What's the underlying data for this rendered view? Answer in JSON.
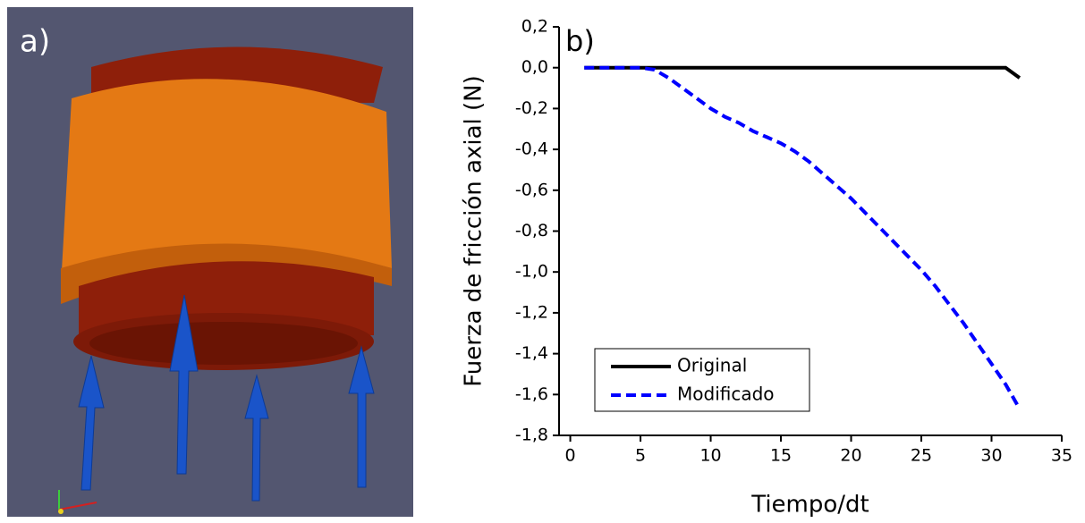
{
  "panel_a": {
    "label": "a)"
  },
  "chart_data": {
    "type": "line",
    "panel_label": "b)",
    "x_label": "Tiempo/dt",
    "y_label": "Fuerza de fricción axial (N)",
    "x": [
      1,
      2,
      3,
      4,
      5,
      6,
      7,
      8,
      9,
      10,
      11,
      12,
      13,
      14,
      15,
      16,
      17,
      18,
      19,
      20,
      21,
      22,
      23,
      24,
      25,
      26,
      27,
      28,
      29,
      30,
      31,
      32
    ],
    "series": [
      {
        "name": "Original",
        "color": "#000000",
        "dash": false,
        "values": [
          0,
          0,
          0,
          0,
          0,
          0,
          0,
          0,
          0,
          0,
          0,
          0,
          0,
          0,
          0,
          0,
          0,
          0,
          0,
          0,
          0,
          0,
          0,
          0,
          0,
          0,
          0,
          0,
          0,
          0,
          0,
          -0.05
        ]
      },
      {
        "name": "Modificado",
        "color": "#0000ff",
        "dash": true,
        "values": [
          0,
          0,
          0,
          0,
          0,
          -0.01,
          -0.05,
          -0.1,
          -0.15,
          -0.2,
          -0.24,
          -0.27,
          -0.31,
          -0.34,
          -0.37,
          -0.41,
          -0.46,
          -0.52,
          -0.58,
          -0.64,
          -0.71,
          -0.78,
          -0.85,
          -0.92,
          -0.99,
          -1.07,
          -1.16,
          -1.25,
          -1.35,
          -1.45,
          -1.55,
          -1.67
        ]
      }
    ],
    "xlim": [
      -0.8,
      35
    ],
    "xticks": [
      0,
      5,
      10,
      15,
      20,
      25,
      30,
      35
    ],
    "ylim": [
      -1.8,
      0.2
    ],
    "yticks": [
      {
        "value": 0.2,
        "label": "0,2"
      },
      {
        "value": 0,
        "label": "0,0"
      },
      {
        "value": -0.2,
        "label": "-0,2"
      },
      {
        "value": -0.4,
        "label": "-0,4"
      },
      {
        "value": -0.6,
        "label": "-0,6"
      },
      {
        "value": -0.8,
        "label": "-0,8"
      },
      {
        "value": -1.0,
        "label": "-1,0"
      },
      {
        "value": -1.2,
        "label": "-1,2"
      },
      {
        "value": -1.4,
        "label": "-1,4"
      },
      {
        "value": -1.6,
        "label": "-1,6"
      },
      {
        "value": -1.8,
        "label": "-1,8"
      }
    ],
    "legend": "lower left",
    "grid": false
  }
}
